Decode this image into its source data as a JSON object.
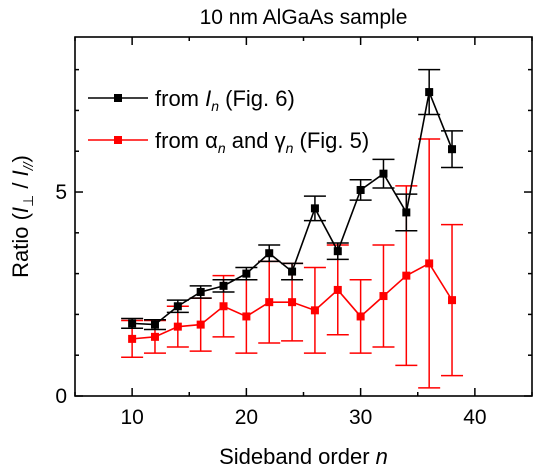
{
  "chart_data": {
    "type": "line",
    "title": "10 nm AlGaAs sample",
    "xlabel": {
      "prefix": "Sideband order ",
      "var": "n"
    },
    "ylabel": {
      "prefix": "Ratio (",
      "num": "I",
      "num_sub": "⊥",
      "sep": " / ",
      "den": "I",
      "den_sub": "//",
      "suffix": ")"
    },
    "xlim": [
      5,
      45
    ],
    "ylim": [
      0,
      8.8
    ],
    "x_ticks": [
      10,
      20,
      30,
      40
    ],
    "y_ticks": [
      0,
      5
    ],
    "grid": false,
    "legend_position": "top-left",
    "series": [
      {
        "name_parts": {
          "pre": "from ",
          "var": "I",
          "sub": "n",
          "post": " (Fig. 6)"
        },
        "color": "#000000",
        "x": [
          10,
          12,
          14,
          16,
          18,
          20,
          22,
          24,
          26,
          28,
          30,
          32,
          34,
          36,
          38
        ],
        "y": [
          1.78,
          1.75,
          2.2,
          2.55,
          2.7,
          3.0,
          3.5,
          3.05,
          4.6,
          3.55,
          5.05,
          5.45,
          4.5,
          7.45,
          6.05
        ],
        "err": [
          0.12,
          0.12,
          0.15,
          0.15,
          0.15,
          0.15,
          0.2,
          0.2,
          0.3,
          0.2,
          0.25,
          0.35,
          0.45,
          0.55,
          0.45
        ]
      },
      {
        "name_parts": {
          "pre": "from ",
          "var1": "α",
          "sub1": "n",
          "mid": " and ",
          "var2": "γ",
          "sub2": "n",
          "post": " (Fig. 5)"
        },
        "color": "#ff0000",
        "x": [
          10,
          12,
          14,
          16,
          18,
          20,
          22,
          24,
          26,
          28,
          30,
          32,
          34,
          36,
          38
        ],
        "y": [
          1.4,
          1.45,
          1.7,
          1.75,
          2.2,
          1.95,
          2.3,
          2.3,
          2.1,
          2.6,
          1.95,
          2.45,
          2.95,
          3.25,
          2.35
        ],
        "err": [
          0.45,
          0.4,
          0.5,
          0.65,
          0.75,
          0.9,
          1.0,
          0.95,
          1.05,
          1.1,
          0.9,
          1.25,
          2.2,
          3.05,
          1.85
        ]
      }
    ]
  }
}
